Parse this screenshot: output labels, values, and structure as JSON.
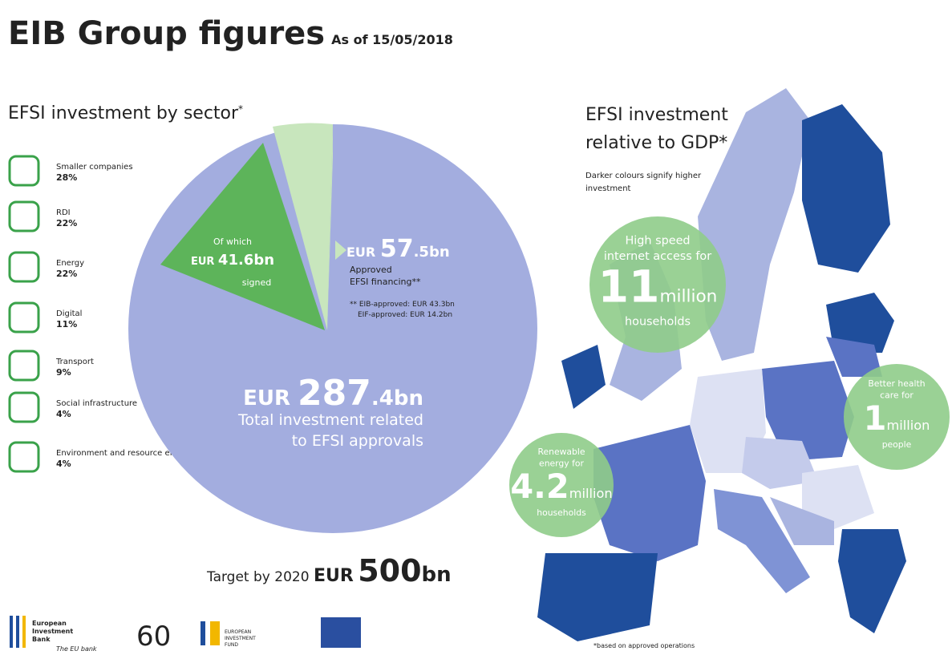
{
  "header": {
    "title": "EIB Group figures",
    "date": "As of 15/05/2018"
  },
  "sectors": {
    "heading": "EFSI investment by sector",
    "note_mark": "*",
    "items": [
      {
        "name": "Smaller companies",
        "share": "28%"
      },
      {
        "name": "RDI",
        "share": "22%"
      },
      {
        "name": "Energy",
        "share": "22%"
      },
      {
        "name": "Digital",
        "share": "11%"
      },
      {
        "name": "Transport",
        "share": "9%"
      },
      {
        "name": "Social infrastructure",
        "share": "4%"
      },
      {
        "name": "Environment and resource efficiency",
        "share": "4%"
      }
    ]
  },
  "pie": {
    "signed": {
      "intro": "Of which",
      "currency": "EUR",
      "amount": "41.6bn",
      "suffix": "signed"
    },
    "approved": {
      "currency": "EUR",
      "whole": "57",
      "fraction": ".5bn",
      "label_1": "Approved",
      "label_2": "EFSI financing**",
      "note_1": "** EIB-approved: EUR 43.3bn",
      "note_2": "EIF-approved: EUR 14.2bn"
    },
    "total": {
      "currency": "EUR",
      "whole": "287",
      "fraction": ".4bn",
      "label_1": "Total investment related",
      "label_2": "to EFSI approvals"
    }
  },
  "target": {
    "label": "Target by 2020",
    "currency": "EUR",
    "whole": "500",
    "unit": "bn"
  },
  "map": {
    "heading_1": "EFSI investment",
    "heading_2": "relative to GDP*",
    "legend_1": "Darker colours signify higher",
    "legend_2": "investment",
    "bubbles": [
      {
        "line_1": "High speed",
        "line_2": "internet access for",
        "number": "11",
        "unit": "million",
        "after": "households"
      },
      {
        "line_1": "Better health",
        "line_2": "care for",
        "number": "1",
        "unit": "million",
        "after": "people"
      },
      {
        "line_1": "Renewable",
        "line_2": "energy for",
        "number": "4.2",
        "unit": "million",
        "after": "households"
      }
    ]
  },
  "footnote": "*based on approved operations",
  "logos": {
    "eib_1": "European",
    "eib_2": "Investment",
    "eib_3": "Bank",
    "eib_tagline": "The EU bank",
    "anniversary": "60",
    "eif_1": "EUROPEAN",
    "eif_2": "INVESTMENT",
    "eif_3": "FUND"
  }
}
